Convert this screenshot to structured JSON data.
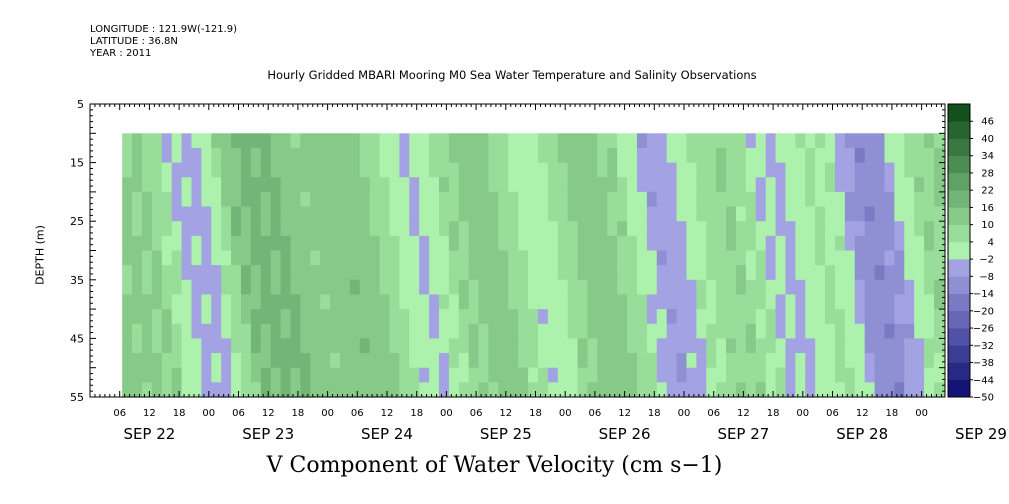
{
  "meta": {
    "longitude": "LONGITUDE : 121.9W(-121.9)",
    "latitude": "LATITUDE : 36.8N",
    "year": "YEAR : 2011"
  },
  "title": "Hourly Gridded MBARI Mooring M0 Sea Water Temperature and Salinity Observations",
  "bottom_title": "V Component of Water Velocity (cm s−1)",
  "chart_data": {
    "type": "heatmap",
    "ylabel": "DEPTH (m)",
    "y_ticks": [
      "5",
      "15",
      "25",
      "35",
      "45",
      "55"
    ],
    "ylim": [
      55,
      5
    ],
    "data_depth_range": [
      10,
      55
    ],
    "hour_ticks": [
      "06",
      "12",
      "18",
      "00",
      "06",
      "12",
      "18",
      "00",
      "06",
      "12",
      "18",
      "00",
      "06",
      "12",
      "18",
      "00",
      "06",
      "12",
      "18",
      "00",
      "06",
      "12",
      "18",
      "00",
      "06",
      "12",
      "18",
      "00",
      "06",
      "12",
      "18",
      "00"
    ],
    "date_labels": [
      "SEP 22",
      "SEP 23",
      "SEP 24",
      "SEP 25",
      "SEP 26",
      "SEP 27",
      "SEP 28",
      "SEP 29"
    ],
    "colorbar_labels": [
      "46",
      "40",
      "34",
      "28",
      "22",
      "16",
      "10",
      "4",
      "-2",
      "-8",
      "-14",
      "-20",
      "-26",
      "-32",
      "-38",
      "-44",
      "-50"
    ],
    "colorbar_min": -50,
    "colorbar_max": 52,
    "colorbar_step": 6,
    "green_phases": [
      {
        "day": "SEP 22",
        "hour": 8,
        "value": 12
      },
      {
        "day": "SEP 23",
        "hour": 6,
        "value": 18
      },
      {
        "day": "SEP 23",
        "hour": 20,
        "value": 12
      },
      {
        "day": "SEP 24",
        "hour": 6,
        "value": 16
      },
      {
        "day": "SEP 24",
        "hour": 22,
        "value": 10
      },
      {
        "day": "SEP 25",
        "hour": 8,
        "value": 18
      },
      {
        "day": "SEP 25",
        "hour": 22,
        "value": 14
      },
      {
        "day": "SEP 26",
        "hour": 8,
        "value": 14
      },
      {
        "day": "SEP 26",
        "hour": 22,
        "value": 8
      },
      {
        "day": "SEP 27",
        "hour": 10,
        "value": 12
      },
      {
        "day": "SEP 28",
        "hour": 0,
        "value": 8
      },
      {
        "day": "SEP 28",
        "hour": 22,
        "value": 10
      }
    ],
    "blue_phases": [
      {
        "day": "SEP 22",
        "hour": 18,
        "value": -6
      },
      {
        "day": "SEP 24",
        "hour": 14,
        "value": -8
      },
      {
        "day": "SEP 25",
        "hour": 14,
        "value": -10
      },
      {
        "day": "SEP 26",
        "hour": 16,
        "value": -16
      },
      {
        "day": "SEP 27",
        "hour": 16,
        "value": -12
      },
      {
        "day": "SEP 28",
        "hour": 12,
        "value": -14
      }
    ]
  }
}
